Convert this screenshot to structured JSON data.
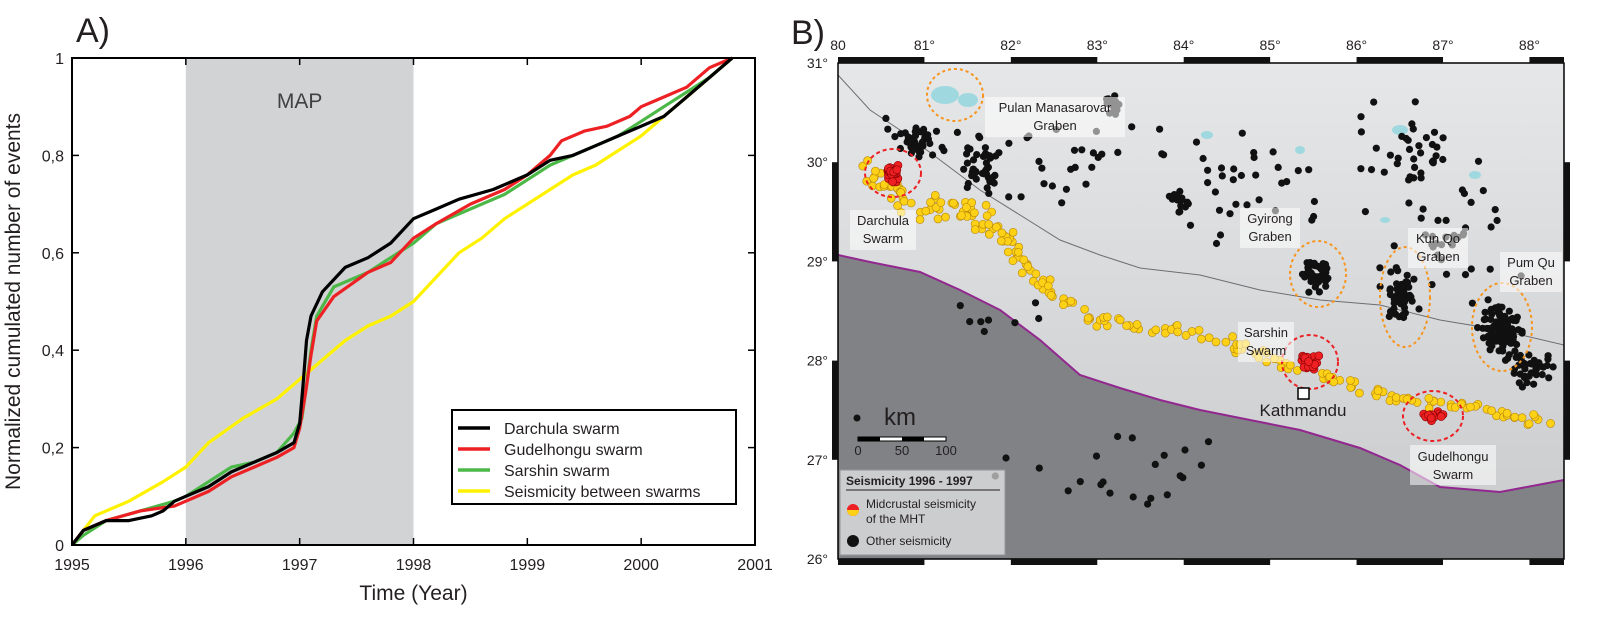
{
  "panel_a_label": "A)",
  "panel_b_label": "B)",
  "chart_data": [
    {
      "type": "line",
      "xlabel": "Time (Year)",
      "ylabel": "Normalized cumulated number of events",
      "xlim": [
        1995,
        2001
      ],
      "ylim": [
        0,
        1
      ],
      "x_ticks": [
        1995,
        1996,
        1997,
        1998,
        1999,
        2000,
        2001
      ],
      "y_ticks": [
        0,
        0.2,
        0.4,
        0.6,
        0.8,
        1
      ],
      "y_tick_labels": [
        "0",
        "0,2",
        "0,4",
        "0,6",
        "0,8",
        "1"
      ],
      "shaded_band": {
        "label": "MAP",
        "from": 1996,
        "to": 1998,
        "color": "#d1d3d4"
      },
      "legend_position": "bottom-right",
      "series": [
        {
          "name": "Darchula swarm",
          "color": "#000000",
          "x": [
            1995,
            1995.1,
            1995.3,
            1995.5,
            1995.7,
            1995.8,
            1995.9,
            1996,
            1996.2,
            1996.4,
            1996.6,
            1996.8,
            1996.95,
            1997.0,
            1997.03,
            1997.06,
            1997.1,
            1997.2,
            1997.4,
            1997.6,
            1997.8,
            1998,
            1998.2,
            1998.4,
            1998.7,
            1999,
            1999.2,
            1999.4,
            1999.6,
            1999.8,
            2000,
            2000.2,
            2000.4,
            2000.6,
            2000.8
          ],
          "y": [
            0,
            0.03,
            0.05,
            0.05,
            0.06,
            0.07,
            0.09,
            0.1,
            0.12,
            0.15,
            0.17,
            0.19,
            0.21,
            0.25,
            0.33,
            0.42,
            0.47,
            0.52,
            0.57,
            0.59,
            0.62,
            0.67,
            0.69,
            0.71,
            0.73,
            0.76,
            0.79,
            0.8,
            0.82,
            0.84,
            0.86,
            0.88,
            0.92,
            0.96,
            1.0
          ]
        },
        {
          "name": "Gudelhongu swarm",
          "color": "#ed2024",
          "x": [
            1995,
            1995.1,
            1995.3,
            1995.6,
            1995.9,
            1996,
            1996.2,
            1996.4,
            1996.6,
            1996.8,
            1996.95,
            1997.0,
            1997.05,
            1997.1,
            1997.15,
            1997.3,
            1997.6,
            1997.8,
            1998,
            1998.2,
            1998.5,
            1998.8,
            1999,
            1999.2,
            1999.3,
            1999.5,
            1999.7,
            1999.9,
            2000,
            2000.2,
            2000.4,
            2000.6,
            2000.8
          ],
          "y": [
            0,
            0.03,
            0.05,
            0.07,
            0.08,
            0.09,
            0.11,
            0.14,
            0.16,
            0.18,
            0.2,
            0.24,
            0.31,
            0.39,
            0.46,
            0.51,
            0.56,
            0.58,
            0.63,
            0.66,
            0.7,
            0.73,
            0.76,
            0.8,
            0.83,
            0.85,
            0.86,
            0.88,
            0.9,
            0.92,
            0.94,
            0.98,
            1.0
          ]
        },
        {
          "name": "Sarshin swarm",
          "color": "#4cb848",
          "x": [
            1995,
            1995.1,
            1995.3,
            1995.6,
            1995.9,
            1996,
            1996.2,
            1996.4,
            1996.6,
            1996.8,
            1996.95,
            1997.02,
            1997.06,
            1997.1,
            1997.15,
            1997.3,
            1997.6,
            1997.8,
            1998,
            1998.2,
            1998.5,
            1998.8,
            1999,
            1999.2,
            1999.4,
            1999.6,
            1999.8,
            2000,
            2000.2,
            2000.4,
            2000.6,
            2000.8
          ],
          "y": [
            0,
            0.02,
            0.05,
            0.07,
            0.09,
            0.1,
            0.13,
            0.16,
            0.17,
            0.19,
            0.23,
            0.26,
            0.33,
            0.4,
            0.47,
            0.53,
            0.56,
            0.59,
            0.62,
            0.66,
            0.69,
            0.72,
            0.75,
            0.78,
            0.8,
            0.82,
            0.84,
            0.87,
            0.9,
            0.93,
            0.96,
            1.0
          ]
        },
        {
          "name": "Seismicity between swarms",
          "color": "#fff200",
          "x": [
            1995,
            1995.2,
            1995.5,
            1995.8,
            1996,
            1996.2,
            1996.5,
            1996.8,
            1997,
            1997.2,
            1997.4,
            1997.6,
            1997.8,
            1998,
            1998.2,
            1998.4,
            1998.6,
            1998.8,
            1999,
            1999.2,
            1999.4,
            1999.6,
            1999.8,
            2000,
            2000.2,
            2000.4,
            2000.6,
            2000.8
          ],
          "y": [
            0,
            0.06,
            0.09,
            0.13,
            0.16,
            0.21,
            0.26,
            0.3,
            0.34,
            0.38,
            0.42,
            0.45,
            0.47,
            0.5,
            0.55,
            0.6,
            0.63,
            0.67,
            0.7,
            0.73,
            0.76,
            0.78,
            0.81,
            0.84,
            0.88,
            0.92,
            0.96,
            1.0
          ]
        }
      ]
    }
  ],
  "map": {
    "lon_ticks": [
      80,
      81,
      82,
      83,
      84,
      85,
      86,
      87,
      88
    ],
    "lon_tick_labels": [
      "80",
      "81°",
      "82°",
      "83°",
      "84°",
      "85°",
      "86°",
      "87°",
      "88°"
    ],
    "lat_ticks": [
      31,
      30,
      29,
      28,
      27,
      26
    ],
    "lat_tick_labels": [
      "31°",
      "30°",
      "29°",
      "28°",
      "27°",
      "26°"
    ],
    "labels": {
      "pulan": "Pulan Manasarovar",
      "graben_word": "Graben",
      "darchula_1": "Darchula",
      "swarm_word": "Swarm",
      "gyirong": "Gyirong",
      "kun_qo": "Kun Qo",
      "pum_qu": "Pum Qu",
      "sarshin": "Sarshin",
      "kathmandu": "Kathmandu",
      "gudelhongu": "Gudelhongu"
    },
    "scale": {
      "unit": "km",
      "ticks": [
        "0",
        "50",
        "100"
      ]
    },
    "legend": {
      "title": "Seismicity 1996 - 1997",
      "item1_line1": "Midcrustal seismicity",
      "item1_line2": "of the MHT",
      "item2": "Other seismicity"
    },
    "colors": {
      "swarm_red": "#ed2024",
      "midcrustal_yellow": "#fcd116",
      "other_black": "#111111",
      "mft_purple": "#92278f",
      "graben_orange": "#f7941d",
      "lake_blue": "#9fd9df"
    }
  }
}
